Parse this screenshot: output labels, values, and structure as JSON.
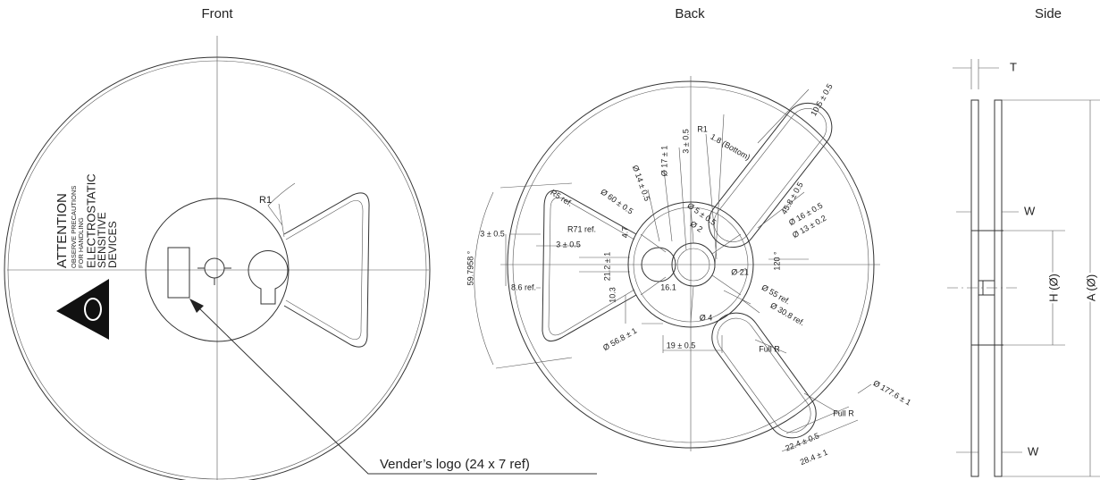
{
  "front": {
    "title": "Front",
    "radius_label": "R1",
    "warning": [
      "ATTENTION",
      "OBSERVE PRECAUTIONS",
      "FOR HANDLING",
      "ELECTROSTATIC",
      "SENSITIVE",
      "DEVICES"
    ],
    "callout": "Vender’s logo (24 x 7 ref)"
  },
  "back": {
    "title": "Back",
    "dimensions": [
      "10.5 ± 0.5",
      "1.8 (Bottom)",
      "R1",
      "45.8 ± 0.5",
      "R5 ref.",
      "Ø 60 ± 0.5",
      "Ø 14 ± 0.5",
      "Ø 17 ± 1",
      "3 ± 0.5",
      "Ø 5 ± 0.5",
      "Ø 2",
      "Ø 16 ± 0.5",
      "Ø 13 ± 0.2",
      "R71 ref.",
      "4.7",
      "3 ± 0.5",
      "3 ± 0.5",
      "59.7958 °",
      "21.2 ± 1",
      "120 °",
      "Ø 21",
      "8.6 ref.",
      "10.3",
      "16.1",
      "Ø 55 ref.",
      "Ø 30.8 ref.",
      "Ø 4",
      "Ø 56.8 ± 1",
      "19 ± 0.5",
      "Full R",
      "Full R",
      "Ø 177.6 ± 1",
      "22.4 ± 0.5",
      "28.4 ± 1"
    ]
  },
  "side": {
    "title": "Side",
    "dimensions": [
      "T",
      "W",
      "W",
      "H (Ø)",
      "A (Ø)"
    ]
  }
}
